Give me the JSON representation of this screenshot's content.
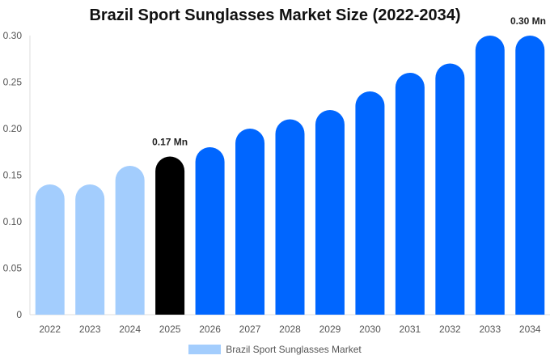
{
  "chart_data": {
    "type": "bar",
    "title": "Brazil Sport Sunglasses Market Size (2022-2034)",
    "categories": [
      "2022",
      "2023",
      "2024",
      "2025",
      "2026",
      "2027",
      "2028",
      "2029",
      "2030",
      "2031",
      "2032",
      "2033",
      "2034"
    ],
    "series": [
      {
        "name": "Brazil Sport Sunglasses Market",
        "values": [
          0.14,
          0.14,
          0.16,
          0.17,
          0.18,
          0.2,
          0.21,
          0.22,
          0.24,
          0.26,
          0.27,
          0.3,
          0.3
        ]
      }
    ],
    "ylim": [
      0,
      0.3
    ],
    "yticks": [
      "0",
      "0.05",
      "0.10",
      "0.15",
      "0.20",
      "0.25",
      "0.30"
    ],
    "ytick_values": [
      0,
      0.05,
      0.1,
      0.15,
      0.2,
      0.25,
      0.3
    ],
    "data_labels": [
      {
        "category": "2025",
        "text": "0.17 Mn"
      },
      {
        "category": "2034",
        "text": "0.30 Mn"
      }
    ],
    "bar_colors": {
      "historical": "#a3cdfd",
      "current": "#000000",
      "forecast": "#0066ff"
    },
    "bar_groups": [
      "historical",
      "historical",
      "historical",
      "current",
      "forecast",
      "forecast",
      "forecast",
      "forecast",
      "forecast",
      "forecast",
      "forecast",
      "forecast",
      "forecast"
    ],
    "grid": false,
    "legend_position": "bottom-center",
    "legend_color": "#a3cdfd"
  }
}
